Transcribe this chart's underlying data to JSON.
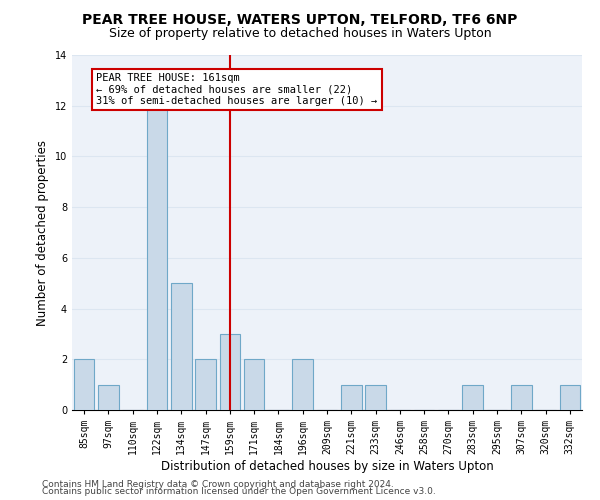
{
  "title1": "PEAR TREE HOUSE, WATERS UPTON, TELFORD, TF6 6NP",
  "title2": "Size of property relative to detached houses in Waters Upton",
  "xlabel": "Distribution of detached houses by size in Waters Upton",
  "ylabel": "Number of detached properties",
  "categories": [
    "85sqm",
    "97sqm",
    "110sqm",
    "122sqm",
    "134sqm",
    "147sqm",
    "159sqm",
    "171sqm",
    "184sqm",
    "196sqm",
    "209sqm",
    "221sqm",
    "233sqm",
    "246sqm",
    "258sqm",
    "270sqm",
    "283sqm",
    "295sqm",
    "307sqm",
    "320sqm",
    "332sqm"
  ],
  "values": [
    2,
    1,
    0,
    12,
    5,
    2,
    3,
    2,
    0,
    2,
    0,
    1,
    1,
    0,
    0,
    0,
    1,
    0,
    1,
    0,
    1
  ],
  "bar_color": "#c9d9e8",
  "bar_edge_color": "#6fa8c8",
  "red_line_index": 6,
  "red_line_color": "#cc0000",
  "annotation_lines": [
    "PEAR TREE HOUSE: 161sqm",
    "← 69% of detached houses are smaller (22)",
    "31% of semi-detached houses are larger (10) →"
  ],
  "annotation_box_color": "#cc0000",
  "ylim": [
    0,
    14
  ],
  "yticks": [
    0,
    2,
    4,
    6,
    8,
    10,
    12,
    14
  ],
  "grid_color": "#dce6f1",
  "background_color": "#edf2f9",
  "footer1": "Contains HM Land Registry data © Crown copyright and database right 2024.",
  "footer2": "Contains public sector information licensed under the Open Government Licence v3.0.",
  "title1_fontsize": 10,
  "title2_fontsize": 9,
  "xlabel_fontsize": 8.5,
  "ylabel_fontsize": 8.5,
  "tick_fontsize": 7,
  "footer_fontsize": 6.5,
  "annotation_fontsize": 7.5
}
